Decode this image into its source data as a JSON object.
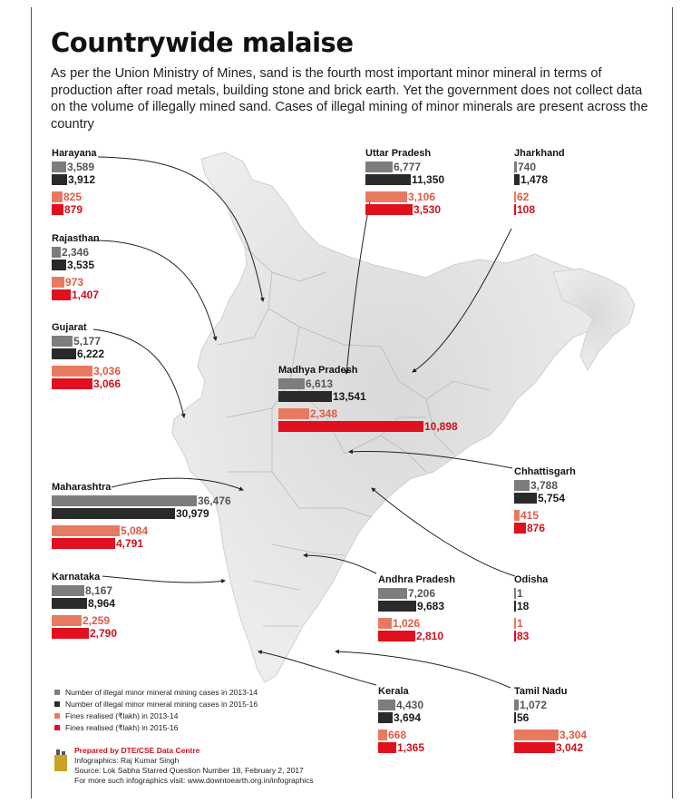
{
  "title": "Countrywide malaise",
  "subtitle": "As per the Union Ministry of Mines, sand is the fourth most important minor mineral in terms of production after road metals, building stone and brick earth. Yet the government does not collect data on the volume of illegally mined sand. Cases of illegal mining of minor minerals are present across the country",
  "colors": {
    "cases_2013_14": "#7d7d7d",
    "cases_2015_16": "#2a2a2a",
    "fines_2013_14": "#e97a62",
    "fines_2015_16": "#e0101f"
  },
  "legend": [
    "Number of illegal minor mineral mining cases in 2013-14",
    "Number of illegal minor mineral mining cases in 2015-16",
    "Fines realised (₹lakh) in 2013-14",
    "Fines realised (₹lakh) in 2015-16"
  ],
  "credits": {
    "title": "Prepared by DTE/CSE Data Centre",
    "infographics": "Infographics: Raj Kumar Singh",
    "source": "Source: Lok Sabha Starred Question Number 18, February 2, 2017",
    "more": "For more such infographics visit: www.downtoearth.org.in/infographics"
  },
  "chart_data": {
    "type": "bar",
    "series": [
      {
        "name": "Number of illegal minor mineral mining cases in 2013-14"
      },
      {
        "name": "Number of illegal minor mineral mining cases in 2015-16"
      },
      {
        "name": "Fines realised (₹lakh) in 2013-14"
      },
      {
        "name": "Fines realised (₹lakh) in 2015-16"
      }
    ],
    "states": [
      {
        "name": "Harayana",
        "cases_2013_14": 3589,
        "cases_2015_16": 3912,
        "fines_2013_14": 825,
        "fines_2015_16": 879,
        "cases_labels": [
          "3,589",
          "3,912"
        ],
        "fines_labels": [
          "825",
          "879"
        ]
      },
      {
        "name": "Rajasthan",
        "cases_2013_14": 2346,
        "cases_2015_16": 3535,
        "fines_2013_14": 973,
        "fines_2015_16": 1407,
        "cases_labels": [
          "2,346",
          "3,535"
        ],
        "fines_labels": [
          "973",
          "1,407"
        ]
      },
      {
        "name": "Gujarat",
        "cases_2013_14": 5177,
        "cases_2015_16": 6222,
        "fines_2013_14": 3036,
        "fines_2015_16": 3066,
        "cases_labels": [
          "5,177",
          "6,222"
        ],
        "fines_labels": [
          "3,036",
          "3,066"
        ]
      },
      {
        "name": "Maharashtra",
        "cases_2013_14": 36476,
        "cases_2015_16": 30979,
        "fines_2013_14": 5084,
        "fines_2015_16": 4791,
        "cases_labels": [
          "36,476",
          "30,979"
        ],
        "fines_labels": [
          "5,084",
          "4,791"
        ]
      },
      {
        "name": "Karnataka",
        "cases_2013_14": 8167,
        "cases_2015_16": 8964,
        "fines_2013_14": 2259,
        "fines_2015_16": 2790,
        "cases_labels": [
          "8,167",
          "8,964"
        ],
        "fines_labels": [
          "2,259",
          "2,790"
        ]
      },
      {
        "name": "Uttar Pradesh",
        "cases_2013_14": 6777,
        "cases_2015_16": 11350,
        "fines_2013_14": 3106,
        "fines_2015_16": 3530,
        "cases_labels": [
          "6,777",
          "11,350"
        ],
        "fines_labels": [
          "3,106",
          "3,530"
        ]
      },
      {
        "name": "Jharkhand",
        "cases_2013_14": 740,
        "cases_2015_16": 1478,
        "fines_2013_14": 62,
        "fines_2015_16": 108,
        "cases_labels": [
          "740",
          "1,478"
        ],
        "fines_labels": [
          "62",
          "108"
        ]
      },
      {
        "name": "Madhya Pradesh",
        "cases_2013_14": 6613,
        "cases_2015_16": 13541,
        "fines_2013_14": 2348,
        "fines_2015_16": 10898,
        "cases_labels": [
          "6,613",
          "13,541"
        ],
        "fines_labels": [
          "2,348",
          "10,898"
        ]
      },
      {
        "name": "Chhattisgarh",
        "cases_2013_14": 3788,
        "cases_2015_16": 5754,
        "fines_2013_14": 415,
        "fines_2015_16": 876,
        "cases_labels": [
          "3,788",
          "5,754"
        ],
        "fines_labels": [
          "415",
          "876"
        ]
      },
      {
        "name": "Andhra Pradesh",
        "cases_2013_14": 7206,
        "cases_2015_16": 9683,
        "fines_2013_14": 1026,
        "fines_2015_16": 2810,
        "cases_labels": [
          "7,206",
          "9,683"
        ],
        "fines_labels": [
          "1,026",
          "2,810"
        ]
      },
      {
        "name": "Odisha",
        "cases_2013_14": 1,
        "cases_2015_16": 18,
        "fines_2013_14": 1,
        "fines_2015_16": 83,
        "cases_labels": [
          "1",
          "18"
        ],
        "fines_labels": [
          "1",
          "83"
        ]
      },
      {
        "name": "Kerala",
        "cases_2013_14": 4430,
        "cases_2015_16": 3694,
        "fines_2013_14": 668,
        "fines_2015_16": 1365,
        "cases_labels": [
          "4,430",
          "3,694"
        ],
        "fines_labels": [
          "668",
          "1,365"
        ]
      },
      {
        "name": "Tamil Nadu",
        "cases_2013_14": 1072,
        "cases_2015_16": 56,
        "fines_2013_14": 3304,
        "fines_2015_16": 3042,
        "cases_labels": [
          "1,072",
          "56"
        ],
        "fines_labels": [
          "3,304",
          "3,042"
        ]
      }
    ]
  }
}
